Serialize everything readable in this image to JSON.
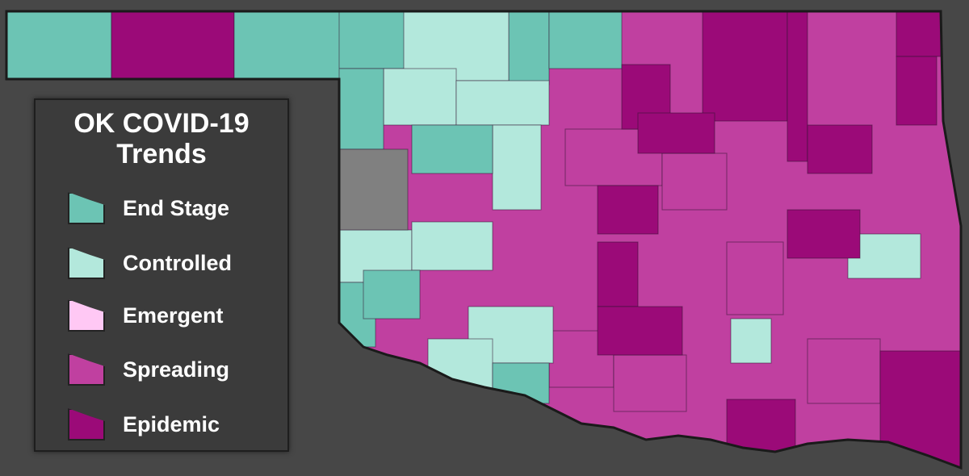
{
  "legend": {
    "title": "OK COVID-19 Trends",
    "items": [
      {
        "label": "End Stage",
        "color": "#6cc4b4"
      },
      {
        "label": "Controlled",
        "color": "#b3e8dc"
      },
      {
        "label": "Emergent",
        "color": "#ffc8f4"
      },
      {
        "label": "Spreading",
        "color": "#c040a0"
      },
      {
        "label": "Epidemic",
        "color": "#9b0a78"
      }
    ]
  }
}
